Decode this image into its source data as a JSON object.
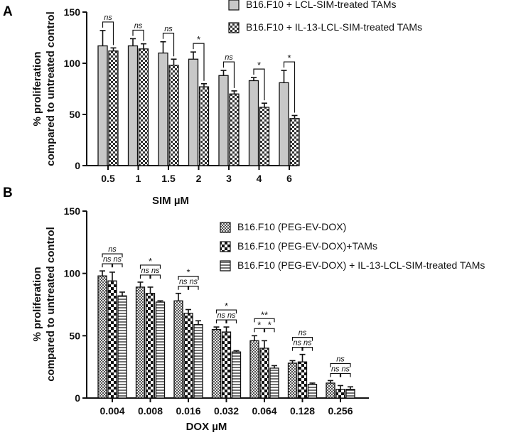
{
  "chart_data": [
    {
      "panel": "A",
      "type": "bar",
      "xlabel": "SIM µM",
      "ylabel": [
        "% proliferation",
        "compared to untreated control"
      ],
      "ylim": [
        0,
        150
      ],
      "yticks": [
        0,
        50,
        100,
        150
      ],
      "categories": [
        "0.5",
        "1",
        "1.5",
        "2",
        "3",
        "4",
        "6"
      ],
      "series": [
        {
          "name": "B16.F10 + LCL-SIM-treated TAMs",
          "pattern": "solid-gray",
          "values": [
            117,
            117,
            110,
            104,
            88,
            83,
            81
          ],
          "errors": [
            15,
            7,
            11,
            7,
            5,
            3,
            12
          ]
        },
        {
          "name": "B16.F10 + IL-13-LCL-SIM-treated TAMs",
          "pattern": "checker",
          "values": [
            112,
            114,
            98,
            77,
            70,
            57,
            46
          ],
          "errors": [
            3,
            5,
            6,
            3,
            3,
            4,
            3
          ]
        }
      ],
      "significance": [
        [
          "ns"
        ],
        [
          "ns"
        ],
        [
          "ns"
        ],
        [
          "*"
        ],
        [
          "ns"
        ],
        [
          "*"
        ],
        [
          "*"
        ]
      ]
    },
    {
      "panel": "B",
      "type": "bar",
      "xlabel": "DOX µM",
      "ylabel": [
        "% proliferation",
        "compared to untreated control"
      ],
      "ylim": [
        0,
        150
      ],
      "yticks": [
        0,
        50,
        100,
        150
      ],
      "categories": [
        "0.004",
        "0.008",
        "0.016",
        "0.032",
        "0.064",
        "0.128",
        "0.256"
      ],
      "series": [
        {
          "name": "B16.F10 (PEG-EV-DOX)",
          "pattern": "fine-checker",
          "values": [
            98,
            89,
            78,
            55,
            46,
            28,
            12
          ],
          "errors": [
            4,
            4,
            6,
            2,
            4,
            2,
            2
          ]
        },
        {
          "name": "B16.F10 (PEG-EV-DOX)+TAMs",
          "pattern": "coarse-checker",
          "values": [
            94,
            84,
            68,
            53,
            40,
            29,
            7
          ],
          "errors": [
            7,
            5,
            3,
            4,
            6,
            6,
            3
          ]
        },
        {
          "name": "B16.F10 (PEG-EV-DOX) + IL-13-LCL-SIM-treated TAMs",
          "pattern": "horizontal-lines",
          "values": [
            82,
            77,
            59,
            37,
            24,
            11,
            7
          ],
          "errors": [
            3,
            1,
            3,
            1,
            2,
            1,
            2
          ]
        }
      ],
      "significance": [
        [
          "ns",
          "ns",
          "ns"
        ],
        [
          "*",
          "ns",
          "ns"
        ],
        [
          "*",
          "ns",
          "ns"
        ],
        [
          "*",
          "ns",
          "ns"
        ],
        [
          "**",
          "*",
          "*"
        ],
        [
          "ns",
          "ns",
          "ns"
        ],
        [
          "ns",
          "ns",
          "ns"
        ]
      ]
    }
  ],
  "panel_labels": [
    "A",
    "B"
  ]
}
